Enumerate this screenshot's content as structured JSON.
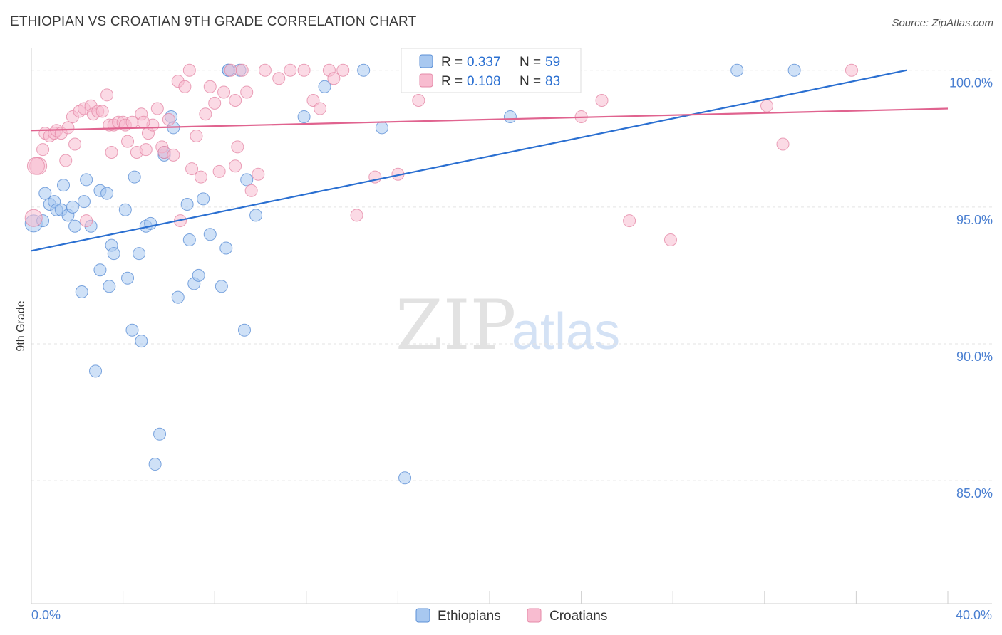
{
  "header": {
    "title": "ETHIOPIAN VS CROATIAN 9TH GRADE CORRELATION CHART",
    "source": "Source: ZipAtlas.com"
  },
  "watermark": {
    "zip": "ZIP",
    "atlas": "atlas"
  },
  "chart_data": {
    "type": "scatter",
    "title": "ETHIOPIAN VS CROATIAN 9TH GRADE CORRELATION CHART",
    "ylabel": "9th Grade",
    "xlim": [
      0,
      40
    ],
    "ylim": [
      80.5,
      100.8
    ],
    "x_tick_labels": [
      "0.0%",
      "40.0%"
    ],
    "y_ticks": [
      {
        "value": 100,
        "label": "100.0%"
      },
      {
        "value": 95,
        "label": "95.0%"
      },
      {
        "value": 90,
        "label": "90.0%"
      },
      {
        "value": 85,
        "label": "85.0%"
      }
    ],
    "grid": "horizontal-dashed",
    "legend_top": [
      {
        "r_label": "R =",
        "r_value": "0.337",
        "n_label": "N =",
        "n_value": "59",
        "color": "#a8c8f0",
        "stroke": "#5b8fd6"
      },
      {
        "r_label": "R =",
        "r_value": "0.108",
        "n_label": "N =",
        "n_value": "83",
        "color": "#f8bcd0",
        "stroke": "#e58aa8"
      }
    ],
    "series": [
      {
        "name": "Ethiopians",
        "color": "#a8c8f0",
        "stroke": "#5b8fd6",
        "line_color": "#2a6fd1",
        "trend": {
          "x": [
            0,
            38.2
          ],
          "y": [
            93.4,
            100.0
          ]
        },
        "points": [
          [
            0.1,
            94.4
          ],
          [
            0.5,
            94.5
          ],
          [
            0.6,
            95.5
          ],
          [
            0.8,
            95.1
          ],
          [
            1.0,
            95.2
          ],
          [
            1.1,
            94.9
          ],
          [
            1.3,
            94.9
          ],
          [
            1.4,
            95.8
          ],
          [
            1.6,
            94.7
          ],
          [
            1.8,
            95.0
          ],
          [
            1.9,
            94.3
          ],
          [
            2.2,
            91.9
          ],
          [
            2.3,
            95.2
          ],
          [
            2.4,
            96.0
          ],
          [
            2.6,
            94.3
          ],
          [
            2.8,
            89.0
          ],
          [
            3.0,
            92.7
          ],
          [
            3.0,
            95.6
          ],
          [
            3.3,
            95.5
          ],
          [
            3.4,
            92.1
          ],
          [
            3.5,
            93.6
          ],
          [
            3.6,
            93.3
          ],
          [
            4.1,
            94.9
          ],
          [
            4.2,
            92.4
          ],
          [
            4.4,
            90.5
          ],
          [
            4.5,
            96.1
          ],
          [
            4.7,
            93.3
          ],
          [
            4.8,
            90.1
          ],
          [
            5.0,
            94.3
          ],
          [
            5.2,
            94.4
          ],
          [
            5.4,
            85.6
          ],
          [
            5.6,
            86.7
          ],
          [
            5.8,
            96.9
          ],
          [
            5.8,
            97.0
          ],
          [
            6.1,
            98.3
          ],
          [
            6.2,
            97.9
          ],
          [
            6.4,
            91.7
          ],
          [
            6.8,
            95.1
          ],
          [
            6.9,
            93.8
          ],
          [
            7.1,
            92.2
          ],
          [
            7.3,
            92.5
          ],
          [
            7.5,
            95.3
          ],
          [
            7.8,
            94.0
          ],
          [
            8.3,
            92.1
          ],
          [
            8.5,
            93.5
          ],
          [
            8.6,
            100.0
          ],
          [
            9.1,
            100.0
          ],
          [
            9.3,
            90.5
          ],
          [
            9.4,
            96.0
          ],
          [
            9.8,
            94.7
          ],
          [
            11.9,
            98.3
          ],
          [
            12.8,
            99.4
          ],
          [
            14.5,
            100.0
          ],
          [
            15.3,
            97.9
          ],
          [
            16.3,
            85.1
          ],
          [
            20.9,
            98.3
          ],
          [
            30.8,
            100.0
          ],
          [
            33.3,
            100.0
          ],
          [
            8.6,
            100.0
          ]
        ]
      },
      {
        "name": "Croatians",
        "color": "#f8bcd0",
        "stroke": "#e58aa8",
        "line_color": "#e0638f",
        "trend": {
          "x": [
            0,
            40
          ],
          "y": [
            97.8,
            98.6
          ]
        },
        "points": [
          [
            0.1,
            94.6
          ],
          [
            0.3,
            96.5
          ],
          [
            0.5,
            97.1
          ],
          [
            0.6,
            97.7
          ],
          [
            0.8,
            97.6
          ],
          [
            1.0,
            97.7
          ],
          [
            1.1,
            97.8
          ],
          [
            1.3,
            97.7
          ],
          [
            1.5,
            96.7
          ],
          [
            1.6,
            97.9
          ],
          [
            1.8,
            98.3
          ],
          [
            1.9,
            97.3
          ],
          [
            2.1,
            98.5
          ],
          [
            2.3,
            98.6
          ],
          [
            2.4,
            94.5
          ],
          [
            2.6,
            98.7
          ],
          [
            2.7,
            98.4
          ],
          [
            2.9,
            98.5
          ],
          [
            3.1,
            98.5
          ],
          [
            3.3,
            99.1
          ],
          [
            3.4,
            98.0
          ],
          [
            3.5,
            97.0
          ],
          [
            3.6,
            98.0
          ],
          [
            3.8,
            98.1
          ],
          [
            4.0,
            98.1
          ],
          [
            4.1,
            98.0
          ],
          [
            4.2,
            97.4
          ],
          [
            4.4,
            98.1
          ],
          [
            4.6,
            97.0
          ],
          [
            4.8,
            98.4
          ],
          [
            5.0,
            97.1
          ],
          [
            5.1,
            97.7
          ],
          [
            5.3,
            98.0
          ],
          [
            5.5,
            98.6
          ],
          [
            5.7,
            97.2
          ],
          [
            5.8,
            97.0
          ],
          [
            6.0,
            98.2
          ],
          [
            6.2,
            96.9
          ],
          [
            6.4,
            99.6
          ],
          [
            6.5,
            94.5
          ],
          [
            6.7,
            99.4
          ],
          [
            6.9,
            100.0
          ],
          [
            7.0,
            96.4
          ],
          [
            7.2,
            97.6
          ],
          [
            7.4,
            96.1
          ],
          [
            7.6,
            98.4
          ],
          [
            7.8,
            99.4
          ],
          [
            8.0,
            98.8
          ],
          [
            8.2,
            96.3
          ],
          [
            8.4,
            99.2
          ],
          [
            8.7,
            100.0
          ],
          [
            8.9,
            96.5
          ],
          [
            9.0,
            97.2
          ],
          [
            9.2,
            100.0
          ],
          [
            9.4,
            99.2
          ],
          [
            9.6,
            95.6
          ],
          [
            9.9,
            96.2
          ],
          [
            10.2,
            100.0
          ],
          [
            10.8,
            99.7
          ],
          [
            11.3,
            100.0
          ],
          [
            11.9,
            100.0
          ],
          [
            12.3,
            98.9
          ],
          [
            12.6,
            98.6
          ],
          [
            13.0,
            100.0
          ],
          [
            13.2,
            99.7
          ],
          [
            13.6,
            100.0
          ],
          [
            14.2,
            94.7
          ],
          [
            15.0,
            96.1
          ],
          [
            16.0,
            96.2
          ],
          [
            16.9,
            98.9
          ],
          [
            18.0,
            100.0
          ],
          [
            19.0,
            99.8
          ],
          [
            22.8,
            100.0
          ],
          [
            24.0,
            98.3
          ],
          [
            24.9,
            98.9
          ],
          [
            26.1,
            94.5
          ],
          [
            27.9,
            93.8
          ],
          [
            32.1,
            98.7
          ],
          [
            32.8,
            97.3
          ],
          [
            35.8,
            100.0
          ],
          [
            0.2,
            96.5
          ],
          [
            4.9,
            98.1
          ],
          [
            8.9,
            98.9
          ]
        ]
      }
    ]
  },
  "legend_bottom": [
    {
      "label": "Ethiopians",
      "color": "#a8c8f0",
      "stroke": "#5b8fd6"
    },
    {
      "label": "Croatians",
      "color": "#f8bcd0",
      "stroke": "#e58aa8"
    }
  ]
}
